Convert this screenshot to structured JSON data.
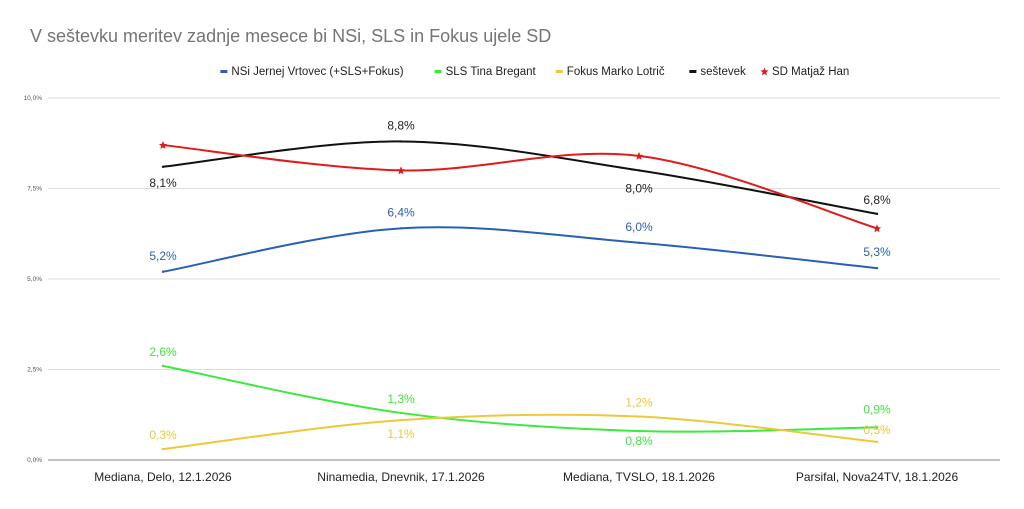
{
  "chart_data": {
    "type": "line",
    "title": "V seštevku meritev zadnje mesece bi NSi, SLS in Fokus ujele SD",
    "xlabel": "",
    "ylabel": "",
    "categories": [
      "Mediana, Delo, 12.1.2026",
      "Ninamedia, Dnevnik, 17.1.2026",
      "Mediana, TVSLO, 18.1.2026",
      "Parsifal, Nova24TV, 18.1.2026"
    ],
    "ylim": [
      0,
      10
    ],
    "yticks": [
      "0,0%",
      "2,5%",
      "5,0%",
      "7,5%",
      "10,0%"
    ],
    "grid": true,
    "legend_position": "top",
    "smooth": true,
    "series": [
      {
        "name": "NSi Jernej Vrtovec (+SLS+Fokus)",
        "color": "#2b5fb5",
        "values": [
          5.2,
          6.4,
          6.0,
          5.3
        ],
        "labels": [
          "5,2%",
          "6,4%",
          "6,0%",
          "5,3%"
        ]
      },
      {
        "name": "SLS Tina Bregant",
        "color": "#3ee83e",
        "values": [
          2.6,
          1.3,
          0.8,
          0.9
        ],
        "labels": [
          "2,6%",
          "1,3%",
          "0,8%",
          "0,9%"
        ]
      },
      {
        "name": "Fokus Marko Lotrič",
        "color": "#eec83a",
        "values": [
          0.3,
          1.1,
          1.2,
          0.5
        ],
        "labels": [
          "0,3%",
          "1,1%",
          "1,2%",
          "0,5%"
        ]
      },
      {
        "name": "seštevek",
        "color": "#111111",
        "values": [
          8.1,
          8.8,
          8.0,
          6.8
        ],
        "labels": [
          "8,1%",
          "8,8%",
          "8,0%",
          "6,8%"
        ]
      },
      {
        "name": "SD Matjaž Han",
        "color": "#e01b1b",
        "values": [
          8.7,
          8.0,
          8.4,
          6.4
        ],
        "labels": []
      }
    ]
  }
}
